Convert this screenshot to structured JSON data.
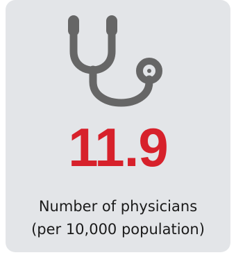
{
  "stat": {
    "icon": "stethoscope-icon",
    "value": "11.9",
    "label_line1": "Number of physicians",
    "label_line2": "(per 10,000 population)"
  },
  "colors": {
    "card_background": "#e3e5e8",
    "icon": "#666666",
    "value": "#d7212b",
    "text": "#1a1a1a"
  }
}
